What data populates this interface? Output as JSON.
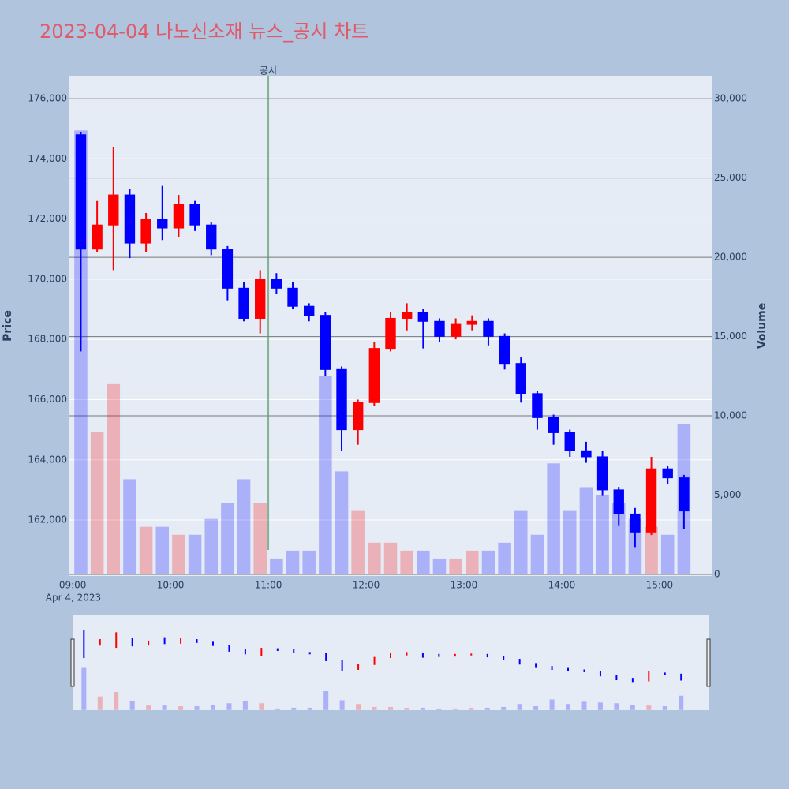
{
  "chart_data": {
    "type": "candlestick",
    "title": "2023-04-04 나노신소재 뉴스_공시 차트",
    "x": [
      "2023-04-04 09:00",
      "2023-04-04 09:10",
      "2023-04-04 09:20",
      "2023-04-04 09:30",
      "2023-04-04 09:40",
      "2023-04-04 09:50",
      "2023-04-04 10:00",
      "2023-04-04 10:10",
      "2023-04-04 10:20",
      "2023-04-04 10:30",
      "2023-04-04 10:40",
      "2023-04-04 10:50",
      "2023-04-04 11:00",
      "2023-04-04 11:10",
      "2023-04-04 11:20",
      "2023-04-04 11:30",
      "2023-04-04 11:40",
      "2023-04-04 11:50",
      "2023-04-04 12:00",
      "2023-04-04 12:10",
      "2023-04-04 12:20",
      "2023-04-04 12:30",
      "2023-04-04 12:40",
      "2023-04-04 12:50",
      "2023-04-04 13:00",
      "2023-04-04 13:10",
      "2023-04-04 13:20",
      "2023-04-04 13:30",
      "2023-04-04 13:40",
      "2023-04-04 13:50",
      "2023-04-04 14:00",
      "2023-04-04 14:10",
      "2023-04-04 14:20",
      "2023-04-04 14:30",
      "2023-04-04 14:40",
      "2023-04-04 14:50",
      "2023-04-04 15:00",
      "2023-04-04 15:10"
    ],
    "open": [
      174800,
      171000,
      171800,
      172800,
      171200,
      172000,
      171700,
      172500,
      171800,
      171000,
      169700,
      168700,
      170000,
      169700,
      169100,
      168800,
      167000,
      165000,
      165900,
      167700,
      168700,
      168900,
      168600,
      168100,
      168500,
      168600,
      168100,
      167200,
      166200,
      165400,
      164900,
      164300,
      164100,
      163000,
      162200,
      161600,
      163700,
      163400
    ],
    "high": [
      174900,
      172600,
      174400,
      173000,
      172200,
      173100,
      172800,
      172600,
      171900,
      171100,
      169900,
      170300,
      170200,
      169900,
      169200,
      168900,
      167100,
      166000,
      167900,
      168900,
      169200,
      169000,
      168700,
      168700,
      168800,
      168700,
      168200,
      167400,
      166300,
      165500,
      165000,
      164600,
      164300,
      163100,
      162400,
      164100,
      163800,
      163500
    ],
    "low": [
      167600,
      170900,
      170300,
      170700,
      170900,
      171300,
      171400,
      171600,
      170800,
      169300,
      168600,
      168200,
      169500,
      169000,
      168600,
      166800,
      164300,
      164500,
      165800,
      167600,
      168300,
      167700,
      167900,
      168000,
      168300,
      167800,
      167000,
      165900,
      165000,
      164500,
      164100,
      163900,
      162800,
      161800,
      161100,
      161500,
      163200,
      161700
    ],
    "close": [
      171000,
      171800,
      172800,
      171200,
      172000,
      171700,
      172500,
      171800,
      171000,
      169700,
      168700,
      170000,
      169700,
      169100,
      168800,
      167000,
      165000,
      165900,
      167700,
      168700,
      168900,
      168600,
      168100,
      168500,
      168600,
      168100,
      167200,
      166200,
      165400,
      164900,
      164300,
      164100,
      163000,
      162200,
      161600,
      163700,
      163400,
      162300
    ],
    "volume": [
      28000,
      9000,
      12000,
      6000,
      3000,
      3000,
      2500,
      2500,
      3500,
      4500,
      6000,
      4500,
      1000,
      1500,
      1500,
      12500,
      6500,
      4000,
      2000,
      2000,
      1500,
      1500,
      1000,
      1000,
      1500,
      1500,
      2000,
      4000,
      2500,
      7000,
      4000,
      5500,
      5000,
      4500,
      3500,
      3000,
      2500,
      9500
    ],
    "increasing_color": "#ff0000",
    "decreasing_color": "#0000ff",
    "xlim": [
      "2023-04-04 08:58",
      "2023-04-04 15:32"
    ],
    "xticks": [
      {
        "value": "2023-04-04 09:00",
        "label": "09:00"
      },
      {
        "value": "2023-04-04 10:00",
        "label": "10:00"
      },
      {
        "value": "2023-04-04 11:00",
        "label": "11:00"
      },
      {
        "value": "2023-04-04 12:00",
        "label": "12:00"
      },
      {
        "value": "2023-04-04 13:00",
        "label": "13:00"
      },
      {
        "value": "2023-04-04 14:00",
        "label": "14:00"
      },
      {
        "value": "2023-04-04 15:00",
        "label": "15:00"
      }
    ],
    "x_date_label": "Apr 4, 2023",
    "ylim": [
      160140,
      176760
    ],
    "yticks": [
      {
        "value": 162000,
        "label": "162,000"
      },
      {
        "value": 164000,
        "label": "164,000"
      },
      {
        "value": 166000,
        "label": "166,000"
      },
      {
        "value": 168000,
        "label": "168,000"
      },
      {
        "value": 170000,
        "label": "170,000"
      },
      {
        "value": 172000,
        "label": "172,000"
      },
      {
        "value": 174000,
        "label": "174,000"
      },
      {
        "value": 176000,
        "label": "176,000"
      }
    ],
    "y2lim": [
      -100,
      31450
    ],
    "y2ticks": [
      0,
      {
        "value": 5000,
        "label": "5,000"
      },
      {
        "value": 10000,
        "label": "10,000"
      },
      {
        "value": 15000,
        "label": "15,000"
      },
      {
        "value": 20000,
        "label": "20,000"
      },
      {
        "value": 25000,
        "label": "25,000"
      },
      {
        "value": 30000,
        "label": "30,000"
      }
    ],
    "ylabel": "Price",
    "y2label": "Volume",
    "annotation": {
      "x": "2023-04-04 11:00",
      "text": "공시"
    },
    "grid": true,
    "rangeslider": true
  }
}
